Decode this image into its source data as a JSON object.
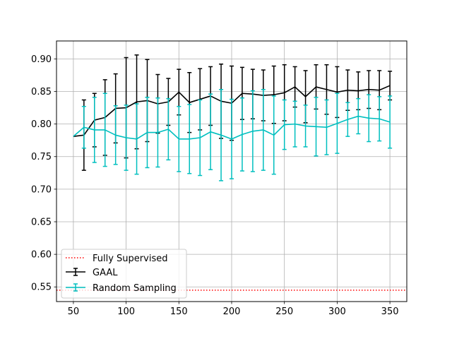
{
  "chart_data": {
    "type": "line",
    "title": "",
    "xlabel": "",
    "ylabel": "",
    "xlim": [
      34,
      366
    ],
    "ylim": [
      0.5275,
      0.9275
    ],
    "xticks": [
      50,
      100,
      150,
      200,
      250,
      300,
      350
    ],
    "yticks": [
      0.55,
      0.6,
      0.65,
      0.7,
      0.75,
      0.8,
      0.85,
      0.9
    ],
    "xtick_labels": [
      "50",
      "100",
      "150",
      "200",
      "250",
      "300",
      "350"
    ],
    "ytick_labels": [
      "0.55",
      "0.60",
      "0.65",
      "0.70",
      "0.75",
      "0.80",
      "0.85",
      "0.90"
    ],
    "grid": true,
    "legend_position": "lower-left",
    "fully_supervised": {
      "name": "Fully Supervised",
      "value": 0.545,
      "color": "#ff0000",
      "style": "dotted"
    },
    "series": [
      {
        "name": "GAAL",
        "color": "#000000",
        "x": [
          50,
          60,
          70,
          80,
          90,
          100,
          110,
          120,
          130,
          140,
          150,
          160,
          170,
          180,
          190,
          200,
          210,
          220,
          230,
          240,
          250,
          260,
          270,
          280,
          290,
          300,
          310,
          320,
          330,
          340,
          350
        ],
        "y": [
          0.781,
          0.783,
          0.806,
          0.81,
          0.824,
          0.825,
          0.834,
          0.836,
          0.831,
          0.834,
          0.849,
          0.833,
          0.838,
          0.843,
          0.835,
          0.832,
          0.847,
          0.846,
          0.844,
          0.845,
          0.848,
          0.857,
          0.842,
          0.857,
          0.853,
          0.849,
          0.852,
          0.851,
          0.853,
          0.852,
          0.859
        ],
        "err": [
          0.0,
          0.054,
          0.041,
          0.058,
          0.053,
          0.077,
          0.072,
          0.063,
          0.045,
          0.036,
          0.035,
          0.046,
          0.047,
          0.045,
          0.057,
          0.057,
          0.04,
          0.038,
          0.039,
          0.044,
          0.043,
          0.031,
          0.04,
          0.034,
          0.038,
          0.039,
          0.031,
          0.029,
          0.029,
          0.03,
          0.022
        ]
      },
      {
        "name": "Random Sampling",
        "color": "#00bfbf",
        "x": [
          50,
          60,
          70,
          80,
          90,
          100,
          110,
          120,
          130,
          140,
          150,
          160,
          170,
          180,
          190,
          200,
          210,
          220,
          230,
          240,
          250,
          260,
          270,
          280,
          290,
          300,
          310,
          320,
          330,
          340,
          350
        ],
        "y": [
          0.781,
          0.795,
          0.791,
          0.791,
          0.783,
          0.779,
          0.777,
          0.787,
          0.787,
          0.792,
          0.777,
          0.777,
          0.779,
          0.788,
          0.783,
          0.777,
          0.784,
          0.789,
          0.791,
          0.783,
          0.799,
          0.8,
          0.797,
          0.796,
          0.795,
          0.801,
          0.807,
          0.812,
          0.809,
          0.808,
          0.803
        ],
        "err": [
          0.0,
          0.032,
          0.05,
          0.056,
          0.045,
          0.05,
          0.054,
          0.054,
          0.053,
          0.047,
          0.05,
          0.053,
          0.058,
          0.058,
          0.07,
          0.061,
          0.056,
          0.062,
          0.062,
          0.06,
          0.038,
          0.035,
          0.032,
          0.045,
          0.042,
          0.046,
          0.026,
          0.027,
          0.036,
          0.034,
          0.04
        ]
      }
    ]
  }
}
